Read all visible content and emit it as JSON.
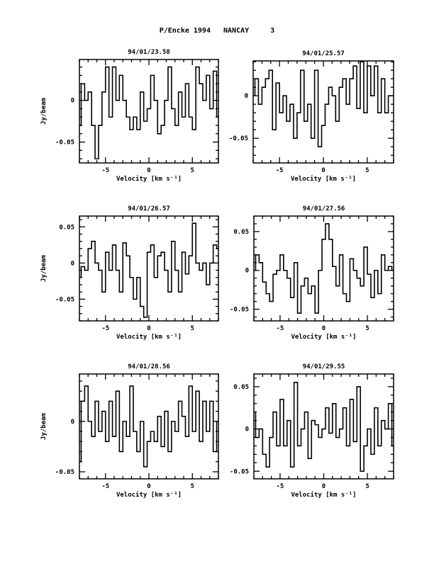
{
  "title": "P/Encke 1994   NANCAY     3",
  "chart_data": [
    {
      "type": "line",
      "title": "94/01/23.58",
      "xlabel": "Velocity [km s^-1]",
      "ylabel": "Jy/beam",
      "xlim": [
        -8,
        8
      ],
      "ylim": [
        -0.075,
        0.049
      ],
      "xticks": [
        "-5",
        "0",
        "5"
      ],
      "xtickvals": [
        -5,
        0,
        5
      ],
      "yticks": [
        "-0.05",
        "0"
      ],
      "ytickvals": [
        -0.05,
        0
      ],
      "x0": -8,
      "dx": 0.4,
      "values": [
        -0.03,
        0.02,
        0.0,
        0.01,
        -0.03,
        -0.07,
        -0.03,
        0.01,
        0.04,
        -0.02,
        0.04,
        0.0,
        0.03,
        0.0,
        -0.02,
        -0.035,
        -0.02,
        -0.035,
        0.01,
        -0.025,
        -0.01,
        0.03,
        0.0,
        -0.04,
        -0.03,
        0.0,
        0.04,
        -0.01,
        -0.03,
        0.01,
        -0.02,
        0.02,
        -0.02,
        -0.035,
        0.04,
        0.02,
        0.0,
        0.03,
        -0.01,
        0.035,
        -0.02
      ]
    },
    {
      "type": "line",
      "title": "94/01/25.57",
      "xlabel": "Velocity [km s^-1]",
      "ylabel": "",
      "xlim": [
        -8,
        8
      ],
      "ylim": [
        -0.079,
        0.041
      ],
      "xticks": [
        "-5",
        "0",
        "5"
      ],
      "xtickvals": [
        -5,
        0,
        5
      ],
      "yticks": [
        "-0.05",
        "0"
      ],
      "ytickvals": [
        -0.05,
        0
      ],
      "x0": -8,
      "dx": 0.4,
      "values": [
        0.0,
        0.02,
        -0.01,
        0.01,
        0.02,
        0.03,
        -0.04,
        0.015,
        -0.02,
        0.0,
        -0.03,
        -0.01,
        -0.05,
        -0.02,
        0.03,
        -0.03,
        -0.01,
        -0.05,
        0.03,
        -0.06,
        -0.035,
        -0.01,
        0.01,
        0.0,
        -0.03,
        0.01,
        0.02,
        -0.01,
        0.02,
        0.035,
        -0.015,
        0.04,
        -0.02,
        0.035,
        0.0,
        0.035,
        -0.02,
        0.02,
        -0.02,
        0.0,
        0.0
      ]
    },
    {
      "type": "line",
      "title": "94/01/26.57",
      "xlabel": "Velocity [km s^-1]",
      "ylabel": "Jy/beam",
      "xlim": [
        -8,
        8
      ],
      "ylim": [
        -0.08,
        0.065
      ],
      "xticks": [
        "-5",
        "0",
        "5"
      ],
      "xtickvals": [
        -5,
        0,
        5
      ],
      "yticks": [
        "-0.05",
        "0",
        "0.05"
      ],
      "ytickvals": [
        -0.05,
        0,
        0.05
      ],
      "x0": -8,
      "dx": 0.4,
      "values": [
        -0.02,
        -0.005,
        -0.01,
        0.02,
        0.03,
        0.0,
        -0.01,
        -0.04,
        0.015,
        -0.01,
        0.025,
        -0.01,
        -0.04,
        0.028,
        0.01,
        -0.02,
        -0.05,
        -0.02,
        -0.06,
        -0.075,
        0.015,
        0.025,
        -0.02,
        0.01,
        0.015,
        -0.01,
        -0.04,
        0.03,
        -0.01,
        -0.04,
        0.015,
        -0.015,
        0.01,
        0.055,
        0.0,
        -0.01,
        0.0,
        -0.03,
        0.0,
        0.025,
        0.02
      ]
    },
    {
      "type": "line",
      "title": "94/01/27.56",
      "xlabel": "Velocity [km s^-1]",
      "ylabel": "",
      "xlim": [
        -8,
        8
      ],
      "ylim": [
        -0.065,
        0.07
      ],
      "xticks": [
        "-5",
        "0",
        "5"
      ],
      "xtickvals": [
        -5,
        0,
        5
      ],
      "yticks": [
        "-0.05",
        "0",
        "0.05"
      ],
      "ytickvals": [
        -0.05,
        0,
        0.05
      ],
      "x0": -8,
      "dx": 0.4,
      "values": [
        0.0,
        0.02,
        0.01,
        -0.015,
        -0.03,
        -0.04,
        -0.005,
        0.0,
        0.02,
        0.0,
        -0.01,
        -0.035,
        0.01,
        -0.055,
        -0.02,
        -0.01,
        -0.03,
        -0.02,
        -0.055,
        0.0,
        0.04,
        0.06,
        0.04,
        0.005,
        -0.02,
        0.02,
        -0.03,
        -0.04,
        0.015,
        0.0,
        -0.01,
        -0.02,
        0.03,
        -0.005,
        -0.035,
        0.0,
        -0.03,
        0.02,
        0.0,
        0.005,
        0.0
      ]
    },
    {
      "type": "line",
      "title": "94/01/28.56",
      "xlabel": "Velocity [km s^-1]",
      "ylabel": "Jy/beam",
      "xlim": [
        -8,
        8
      ],
      "ylim": [
        -0.057,
        0.047
      ],
      "xticks": [
        "-5",
        "0",
        "5"
      ],
      "xtickvals": [
        -5,
        0,
        5
      ],
      "yticks": [
        "-0.05",
        "0"
      ],
      "ytickvals": [
        -0.05,
        0
      ],
      "x0": -8,
      "dx": 0.4,
      "values": [
        -0.04,
        0.02,
        0.035,
        0.0,
        -0.015,
        0.02,
        -0.01,
        0.01,
        -0.02,
        0.02,
        -0.015,
        0.03,
        -0.03,
        0.0,
        -0.015,
        0.035,
        -0.01,
        -0.03,
        0.0,
        -0.045,
        -0.02,
        -0.01,
        -0.02,
        0.005,
        -0.025,
        0.01,
        -0.03,
        0.0,
        -0.01,
        0.02,
        0.005,
        -0.015,
        0.035,
        -0.01,
        0.03,
        -0.02,
        0.02,
        -0.01,
        0.02,
        -0.03,
        0.0
      ]
    },
    {
      "type": "line",
      "title": "94/01/29.55",
      "xlabel": "Velocity [km s^-1]",
      "ylabel": "",
      "xlim": [
        -8,
        8
      ],
      "ylim": [
        -0.059,
        0.065
      ],
      "xticks": [
        "-5",
        "0",
        "5"
      ],
      "xtickvals": [
        -5,
        0,
        5
      ],
      "yticks": [
        "-0.05",
        "0",
        "0.05"
      ],
      "ytickvals": [
        -0.05,
        0,
        0.05
      ],
      "x0": -8,
      "dx": 0.4,
      "values": [
        0.02,
        -0.01,
        0.0,
        -0.03,
        -0.045,
        -0.01,
        0.02,
        -0.02,
        0.035,
        -0.02,
        0.01,
        -0.045,
        0.055,
        -0.02,
        0.0,
        0.02,
        -0.035,
        0.01,
        0.005,
        -0.01,
        0.0,
        0.025,
        -0.005,
        0.03,
        -0.01,
        0.0,
        0.025,
        -0.02,
        0.035,
        -0.015,
        0.05,
        -0.05,
        -0.02,
        0.0,
        -0.03,
        0.025,
        -0.02,
        0.01,
        0.0,
        0.03,
        -0.02
      ]
    }
  ]
}
